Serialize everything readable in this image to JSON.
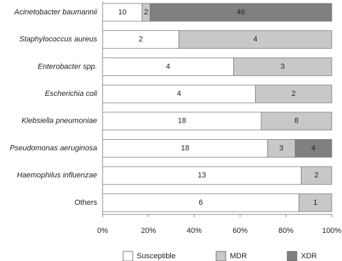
{
  "chart_data": {
    "type": "bar",
    "orientation": "horizontal",
    "stacked": "percent",
    "categories": [
      "Acinetobacter baumannii",
      "Staphylococcus aureus",
      "Enterobacter spp.",
      "Escherichia coli",
      "Klebsiella pneumoniae",
      "Pseudomonas aeruginosa",
      "Haemophilus influenzae",
      "Others"
    ],
    "series": [
      {
        "name": "Susceptible",
        "color": "#ffffff",
        "values": [
          10,
          2,
          4,
          4,
          18,
          18,
          13,
          6
        ]
      },
      {
        "name": "MDR",
        "color": "#c8c8c8",
        "values": [
          2,
          4,
          3,
          2,
          8,
          3,
          2,
          1
        ]
      },
      {
        "name": "XDR",
        "color": "#808080",
        "values": [
          46,
          null,
          null,
          null,
          null,
          4,
          null,
          null
        ]
      }
    ],
    "xlim": [
      0,
      100
    ],
    "xticks": [
      {
        "value": 0,
        "label": "0%"
      },
      {
        "value": 20,
        "label": "20%"
      },
      {
        "value": 40,
        "label": "40%"
      },
      {
        "value": 60,
        "label": "60%"
      },
      {
        "value": 80,
        "label": "80%"
      },
      {
        "value": 100,
        "label": "100%"
      }
    ],
    "legend": "bottom"
  }
}
